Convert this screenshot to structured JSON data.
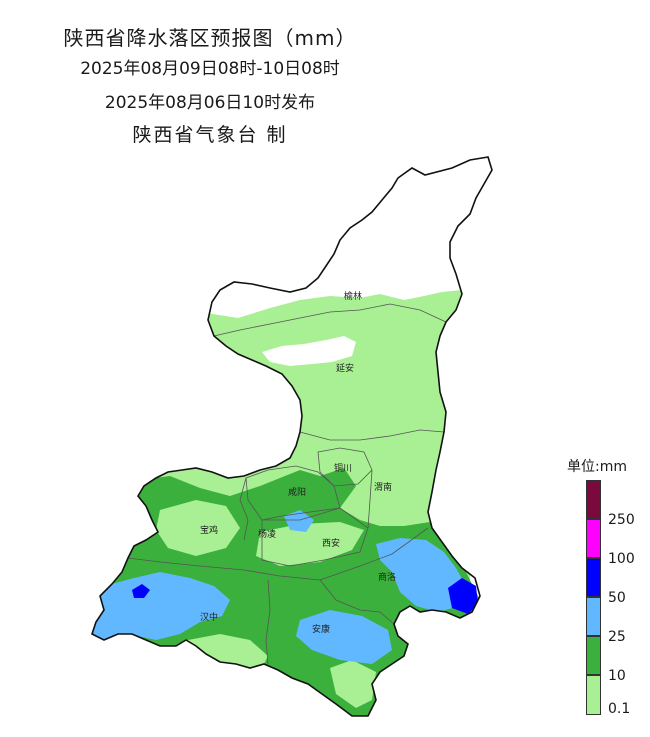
{
  "title": {
    "line1": "陕西省降水落区预报图（mm）",
    "line2": "2025年08月09日08时-10日08时",
    "line3": "2025年08月06日10时发布",
    "line4": "陕西省气象台 制"
  },
  "cities": [
    {
      "id": "yulin",
      "name": "榆林"
    },
    {
      "id": "yanan",
      "name": "延安"
    },
    {
      "id": "tongchuan",
      "name": "铜川"
    },
    {
      "id": "weinan",
      "name": "渭南"
    },
    {
      "id": "xianyang",
      "name": "咸阳"
    },
    {
      "id": "baoji",
      "name": "宝鸡"
    },
    {
      "id": "yangling",
      "name": "杨凌"
    },
    {
      "id": "xian",
      "name": "西安"
    },
    {
      "id": "shangluo",
      "name": "商洛"
    },
    {
      "id": "hanzhong",
      "name": "汉中"
    },
    {
      "id": "ankang",
      "name": "安康"
    }
  ],
  "legend": {
    "title": "单位:mm",
    "bins": [
      {
        "label": "0.1",
        "color": "#a8f093"
      },
      {
        "label": "10",
        "color": "#3cb03c"
      },
      {
        "label": "25",
        "color": "#62b8ff"
      },
      {
        "label": "50",
        "color": "#0000ff"
      },
      {
        "label": "100",
        "color": "#ff00ff"
      },
      {
        "label": "250",
        "color": "#7a0a3d"
      }
    ]
  }
}
